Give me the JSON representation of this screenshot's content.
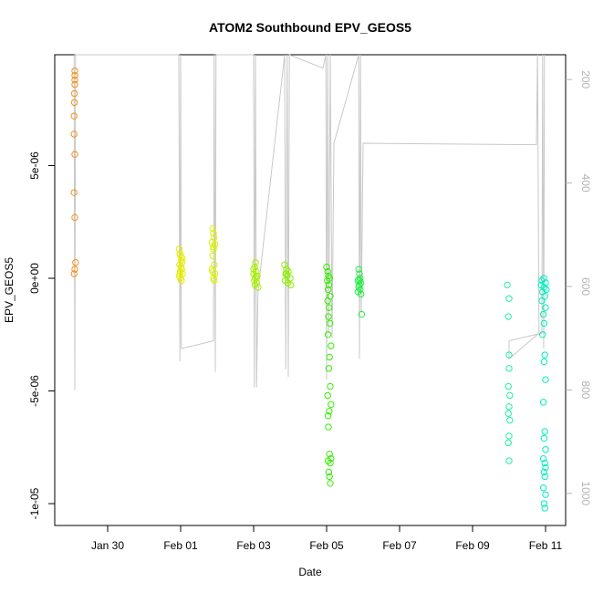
{
  "chart_data": {
    "type": "scatter",
    "title": "ATOM2 Southbound EPV_GEOS5",
    "x_label": "Date",
    "y_label": "EPV_GEOS5",
    "xlim": [
      -1.45,
      12.55
    ],
    "xticks": [
      {
        "value": 0,
        "label": "Jan 30"
      },
      {
        "value": 2,
        "label": "Feb 01"
      },
      {
        "value": 4,
        "label": "Feb 03"
      },
      {
        "value": 6,
        "label": "Feb 05"
      },
      {
        "value": 8,
        "label": "Feb 07"
      },
      {
        "value": 10,
        "label": "Feb 09"
      },
      {
        "value": 12,
        "label": "Feb 11"
      }
    ],
    "ylim": [
      -1.097e-05,
      9.92e-06
    ],
    "yticks": [
      {
        "value": -1e-05,
        "label": "-1e-05"
      },
      {
        "value": -5e-06,
        "label": "-5e-06"
      },
      {
        "value": 0,
        "label": "0e+00"
      },
      {
        "value": 5e-06,
        "label": "5e-06"
      }
    ],
    "y2lim": [
      1062,
      152
    ],
    "y2ticks": [
      200,
      400,
      600,
      800,
      1000
    ],
    "y2_color": "#b4b4b4",
    "series": [
      {
        "type": "line",
        "axis": "y2",
        "color": "#c8c8c8",
        "x": [
          -0.92,
          -0.9,
          -0.88,
          1.95,
          1.98,
          2.0,
          2.02,
          2.9,
          2.92,
          2.95,
          2.97,
          4.0,
          4.02,
          4.05,
          4.08,
          4.12,
          4.85,
          4.88,
          4.92,
          4.95,
          4.98,
          5.9,
          5.98,
          6.0,
          6.03,
          6.06,
          6.1,
          6.15,
          6.2,
          6.88,
          6.9,
          6.93,
          6.95,
          7.0,
          11.75,
          11.78,
          11.82,
          11.0,
          11.0,
          11.9,
          11.92,
          11.95,
          11.97
        ],
        "values": [
          152,
          800,
          152,
          152,
          745,
          152,
          720,
          705,
          152,
          765,
          152,
          152,
          795,
          152,
          795,
          610,
          152,
          760,
          152,
          775,
          152,
          178,
          152,
          780,
          152,
          690,
          152,
          700,
          323,
          152,
          740,
          152,
          650,
          323,
          326,
          152,
          690,
          740,
          705,
          690,
          152,
          720,
          152
        ]
      },
      {
        "color": "#f5901e",
        "x": [
          -0.9,
          -0.9,
          -0.9,
          -0.9,
          -0.91,
          -0.91,
          -0.92,
          -0.92,
          -0.9,
          -0.92,
          -0.9,
          -0.88,
          -0.9,
          -0.92
        ],
        "values": [
          9.2e-06,
          9e-06,
          8.8e-06,
          8.6e-06,
          8.2e-06,
          7.8e-06,
          7.2e-06,
          6.4e-06,
          5.5e-06,
          3.8e-06,
          2.7e-06,
          7e-07,
          4e-07,
          2e-07
        ]
      },
      {
        "color": "#e6ee00",
        "x": [
          1.96,
          1.98,
          2.0,
          2.02,
          2.04,
          1.97,
          2.01,
          2.03,
          1.99,
          2.05,
          1.96,
          2.0,
          2.02,
          1.98,
          2.04
        ],
        "values": [
          1.3e-06,
          1.1e-06,
          1e-06,
          8e-07,
          7e-07,
          6e-07,
          5e-07,
          4e-07,
          3e-07,
          2e-07,
          1e-07,
          0,
          -1e-07,
          2e-07,
          9e-07
        ]
      },
      {
        "color": "#d9f200",
        "x": [
          2.88,
          2.9,
          2.92,
          2.86,
          2.94,
          2.9,
          2.88,
          2.92,
          2.86,
          2.94,
          2.9,
          2.92,
          2.88,
          2.9
        ],
        "values": [
          2.2e-06,
          2e-06,
          1.8e-06,
          1.6e-06,
          1.5e-06,
          1.3e-06,
          1e-06,
          6e-07,
          4e-07,
          2e-07,
          0,
          -1e-07,
          3e-07,
          1.4e-06
        ]
      },
      {
        "color": "#a8f000",
        "x": [
          4.05,
          4.03,
          4.07,
          4.0,
          4.1,
          4.05,
          4.02,
          4.08,
          4.04,
          4.12,
          4.06,
          4.0
        ],
        "values": [
          7e-07,
          5e-07,
          3e-07,
          2e-07,
          1e-07,
          0,
          -1e-07,
          -2e-07,
          -3e-07,
          -4e-07,
          1e-07,
          4e-07
        ]
      },
      {
        "color": "#8cf000",
        "x": [
          4.85,
          4.9,
          4.95,
          4.88,
          4.92,
          5.0,
          4.86,
          4.94,
          5.02,
          4.9
        ],
        "values": [
          6e-07,
          4e-07,
          3e-07,
          2e-07,
          1e-07,
          0,
          -1e-07,
          -2e-07,
          -3e-07,
          2e-07
        ]
      },
      {
        "color": "#33ee00",
        "x": [
          6.0,
          6.03,
          6.05,
          6.08,
          6.02,
          6.06,
          6.04,
          6.1,
          6.03,
          6.07,
          6.05,
          6.09,
          6.04,
          6.12,
          6.08,
          6.06,
          6.1,
          6.03,
          6.07,
          6.05,
          6.08,
          6.12,
          6.04,
          6.1,
          6.06,
          6.08,
          6.1,
          6.04,
          6.12
        ],
        "values": [
          5e-07,
          3e-07,
          1e-07,
          0,
          -1e-07,
          -3e-07,
          -5e-07,
          -8e-07,
          -1e-06,
          -1.3e-06,
          -1.7e-06,
          -2e-06,
          -2.5e-06,
          -3e-06,
          -3.5e-06,
          -4e-06,
          -4.8e-06,
          -5.2e-06,
          -5.9e-06,
          -6.6e-06,
          -7.8e-06,
          -8e-06,
          -8.1e-06,
          -8.2e-06,
          -8.6e-06,
          -8.8e-06,
          -9.1e-06,
          -6.1e-06,
          -5.6e-06
        ]
      },
      {
        "color": "#22ee44",
        "x": [
          6.88,
          6.9,
          6.92,
          6.86,
          6.94,
          6.9,
          6.88,
          6.92,
          6.86,
          6.94,
          6.9,
          6.96
        ],
        "values": [
          4e-07,
          2e-07,
          0,
          -1e-07,
          -2e-07,
          -3e-07,
          -4e-07,
          -5e-07,
          -6e-07,
          -7e-07,
          -1e-07,
          -1.6e-06
        ]
      },
      {
        "color": "#22eea0",
        "x": [
          10.95,
          11.0,
          10.98,
          11.0,
          11.0,
          10.98,
          11.02,
          11.0,
          10.98,
          11.02,
          11.0,
          10.98,
          11.0
        ],
        "values": [
          -3e-07,
          -9e-07,
          -1.7e-06,
          -3.4e-06,
          -4e-06,
          -4.8e-06,
          -5.2e-06,
          -5.7e-06,
          -6e-06,
          -6.3e-06,
          -7e-06,
          -7.3e-06,
          -8.1e-06
        ]
      },
      {
        "color": "#00eec0",
        "x": [
          11.95,
          11.9,
          12.0,
          11.88,
          11.96,
          12.02,
          11.92,
          11.98,
          11.9,
          12.0,
          11.94,
          11.96,
          11.92,
          11.98,
          11.96,
          12.0,
          11.94,
          11.98,
          11.96,
          12.0,
          11.94,
          11.98,
          12.0,
          11.96,
          11.98,
          11.94,
          12.0,
          11.96,
          11.98
        ],
        "values": [
          0,
          -1e-07,
          -2e-07,
          -3e-07,
          -4e-07,
          -5e-07,
          -6e-07,
          -8e-07,
          -1e-06,
          -1.3e-06,
          -1.6e-06,
          -2e-06,
          -2.5e-06,
          -3.4e-06,
          -3.7e-06,
          -4.5e-06,
          -5.5e-06,
          -6.8e-06,
          -7.1e-06,
          -7.6e-06,
          -8e-06,
          -8.2e-06,
          -8.4e-06,
          -8.6e-06,
          -8.8e-06,
          -9.3e-06,
          -9.6e-06,
          -1e-05,
          -1.02e-05
        ]
      }
    ]
  }
}
